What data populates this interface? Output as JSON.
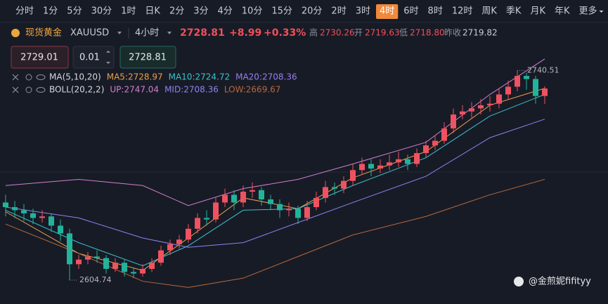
{
  "timeframes": [
    "分时",
    "1分",
    "5分",
    "30分",
    "1时",
    "日K",
    "2分",
    "3分",
    "4分",
    "10分",
    "15分",
    "20分",
    "2时",
    "3时",
    "4时",
    "6时",
    "8时",
    "12时",
    "周K",
    "季K",
    "月K",
    "年K",
    "更多"
  ],
  "active_timeframe": 14,
  "symbol": {
    "name": "现货黄金",
    "code": "XAUUSD",
    "period": "4小时",
    "price": "2728.81",
    "change": "+8.99",
    "change_pct": "+0.33%",
    "high_label": "高",
    "high": "2730.26",
    "open_label": "开",
    "open": "2719.63",
    "low_label": "低",
    "low": "2718.80",
    "prev_label": "昨收",
    "prev": "2719.82"
  },
  "order_inputs": [
    "2729.01",
    "0.01",
    "2728.81"
  ],
  "indicators": [
    {
      "name": "MA(5,10,20)",
      "values": [
        "MA5:2728.97",
        "MA10:2724.72",
        "MA20:2708.36"
      ],
      "colors": [
        "#e8a14c",
        "#3ec1c9",
        "#9b7cf0"
      ]
    },
    {
      "name": "BOLL(20,2,2)",
      "values": [
        "UP:2747.04",
        "MID:2708.36",
        "LOW:2669.67"
      ],
      "colors": [
        "#d27fd0",
        "#8c84f0",
        "#b8693d"
      ]
    }
  ],
  "watermark": "@金煎妮fifityy",
  "chart_data": {
    "type": "candlestick",
    "up_color": "#ef5261",
    "down_color": "#22b39b",
    "ylim": [
      2589.25,
      2749.8
    ],
    "ohlc": [
      [
        2655,
        2660,
        2646,
        2652
      ],
      [
        2652,
        2656,
        2645,
        2650
      ],
      [
        2650,
        2654,
        2643,
        2648
      ],
      [
        2648,
        2651,
        2641,
        2645
      ],
      [
        2645,
        2650,
        2642,
        2646
      ],
      [
        2646,
        2648,
        2636,
        2640
      ],
      [
        2640,
        2644,
        2630,
        2635
      ],
      [
        2635,
        2638,
        2604.74,
        2615
      ],
      [
        2615,
        2621,
        2612,
        2618
      ],
      [
        2618,
        2623,
        2615,
        2620
      ],
      [
        2620,
        2624,
        2616,
        2619
      ],
      [
        2619,
        2621,
        2609,
        2612
      ],
      [
        2612,
        2619,
        2610,
        2616
      ],
      [
        2616,
        2618,
        2607,
        2610
      ],
      [
        2610,
        2613,
        2606,
        2609
      ],
      [
        2609,
        2615,
        2607,
        2612
      ],
      [
        2612,
        2619,
        2610,
        2616
      ],
      [
        2616,
        2627,
        2614,
        2624
      ],
      [
        2624,
        2631,
        2621,
        2628
      ],
      [
        2628,
        2634,
        2625,
        2631
      ],
      [
        2631,
        2641,
        2629,
        2638
      ],
      [
        2638,
        2648,
        2635,
        2645
      ],
      [
        2645,
        2650,
        2640,
        2644
      ],
      [
        2644,
        2658,
        2642,
        2655
      ],
      [
        2655,
        2664,
        2652,
        2660
      ],
      [
        2660,
        2663,
        2650,
        2655
      ],
      [
        2655,
        2666,
        2652,
        2662
      ],
      [
        2662,
        2668,
        2658,
        2663
      ],
      [
        2663,
        2665,
        2653,
        2657
      ],
      [
        2657,
        2660,
        2650,
        2654
      ],
      [
        2654,
        2657,
        2645,
        2650
      ],
      [
        2650,
        2655,
        2646,
        2651
      ],
      [
        2651,
        2653,
        2641,
        2645
      ],
      [
        2645,
        2656,
        2643,
        2652
      ],
      [
        2652,
        2662,
        2650,
        2658
      ],
      [
        2658,
        2669,
        2655,
        2665
      ],
      [
        2665,
        2668,
        2660,
        2664
      ],
      [
        2664,
        2672,
        2661,
        2669
      ],
      [
        2669,
        2680,
        2666,
        2676
      ],
      [
        2676,
        2684,
        2673,
        2680
      ],
      [
        2680,
        2683,
        2672,
        2677
      ],
      [
        2677,
        2683,
        2674,
        2679
      ],
      [
        2679,
        2686,
        2676,
        2681
      ],
      [
        2681,
        2688,
        2678,
        2683
      ],
      [
        2683,
        2686,
        2676,
        2680
      ],
      [
        2680,
        2690,
        2678,
        2687
      ],
      [
        2687,
        2695,
        2684,
        2692
      ],
      [
        2692,
        2698,
        2689,
        2695
      ],
      [
        2695,
        2707,
        2693,
        2703
      ],
      [
        2703,
        2716,
        2700,
        2712
      ],
      [
        2712,
        2718,
        2709,
        2714
      ],
      [
        2714,
        2720,
        2710,
        2716
      ],
      [
        2716,
        2722,
        2712,
        2718
      ],
      [
        2718,
        2724,
        2714,
        2719
      ],
      [
        2719,
        2729,
        2716,
        2725
      ],
      [
        2725,
        2734,
        2722,
        2730
      ],
      [
        2730,
        2740.51,
        2727,
        2737
      ],
      [
        2737,
        2739,
        2728,
        2735
      ],
      [
        2735,
        2737,
        2719,
        2724
      ],
      [
        2724,
        2730.26,
        2718.8,
        2728.81
      ]
    ],
    "high_annotation": [
      56,
      1
    ],
    "low_annotation": [
      7,
      2
    ],
    "lines": [
      {
        "color": "#e8a14c",
        "x": [
          0,
          8,
          15,
          20,
          26,
          32,
          38,
          46,
          53,
          59
        ],
        "values": [
          2649,
          2622,
          2611,
          2632,
          2658,
          2651,
          2671,
          2688,
          2718,
          2729
        ]
      },
      {
        "color": "#3ec1c9",
        "x": [
          0,
          8,
          15,
          20,
          26,
          32,
          38,
          46,
          53,
          59
        ],
        "values": [
          2650,
          2629,
          2614,
          2627,
          2650,
          2651,
          2666,
          2684,
          2711,
          2725
        ]
      },
      {
        "color": "#8c84f0",
        "x": [
          0,
          8,
          15,
          20,
          26,
          32,
          38,
          46,
          53,
          59
        ],
        "values": [
          2652,
          2645,
          2632,
          2626,
          2629,
          2642,
          2655,
          2672,
          2697,
          2709
        ]
      },
      {
        "color": "#d27fd0",
        "x": [
          0,
          8,
          15,
          20,
          26,
          32,
          38,
          46,
          53,
          59
        ],
        "values": [
          2666,
          2670,
          2666,
          2653,
          2664,
          2670,
          2680,
          2694,
          2725,
          2748
        ]
      },
      {
        "color": "#b8693d",
        "x": [
          0,
          8,
          15,
          20,
          26,
          32,
          38,
          46,
          53,
          59
        ],
        "values": [
          2641,
          2622,
          2604,
          2600,
          2606,
          2620,
          2634,
          2646,
          2660,
          2670
        ]
      }
    ]
  }
}
